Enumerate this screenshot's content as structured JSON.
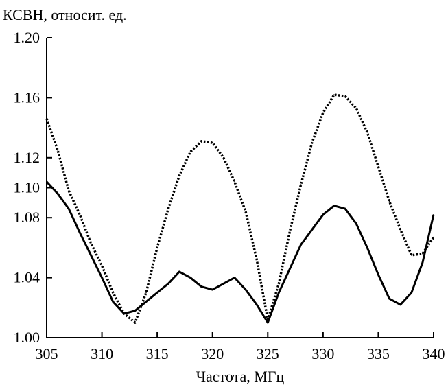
{
  "chart_data": {
    "type": "line",
    "title": "",
    "ylabel": "КСВН, относит. ед.",
    "xlabel": "Частота, МГц",
    "xlim": [
      305,
      340
    ],
    "ylim": [
      1.0,
      1.2
    ],
    "x_ticks": [
      "305",
      "310",
      "315",
      "320",
      "325",
      "330",
      "335",
      "340"
    ],
    "y_ticks": [
      "1.00",
      "1.04",
      "1.08",
      "1.10",
      "1.12",
      "1.16",
      "1.20"
    ],
    "grid": false,
    "legend": "none",
    "series": [
      {
        "style": "dotted",
        "color": "#000000",
        "x": [
          305,
          306,
          307,
          308,
          309,
          310,
          311,
          312,
          313,
          314,
          315,
          316,
          317,
          318,
          319,
          320,
          321,
          322,
          323,
          324,
          325,
          326,
          327,
          328,
          329,
          330,
          331,
          332,
          333,
          334,
          335,
          336,
          337,
          338,
          339,
          340
        ],
        "y": [
          1.146,
          1.125,
          1.098,
          1.082,
          1.063,
          1.048,
          1.03,
          1.016,
          1.01,
          1.03,
          1.06,
          1.086,
          1.108,
          1.124,
          1.131,
          1.13,
          1.12,
          1.104,
          1.084,
          1.052,
          1.012,
          1.036,
          1.071,
          1.102,
          1.13,
          1.15,
          1.162,
          1.161,
          1.153,
          1.137,
          1.114,
          1.091,
          1.072,
          1.055,
          1.056,
          1.067
        ]
      },
      {
        "style": "solid",
        "color": "#000000",
        "x": [
          305,
          306,
          307,
          308,
          309,
          310,
          311,
          312,
          313,
          314,
          315,
          316,
          317,
          318,
          319,
          320,
          321,
          322,
          323,
          324,
          325,
          326,
          327,
          328,
          329,
          330,
          331,
          332,
          333,
          334,
          335,
          336,
          337,
          338,
          339,
          340
        ],
        "y": [
          1.104,
          1.096,
          1.086,
          1.07,
          1.055,
          1.04,
          1.024,
          1.016,
          1.018,
          1.024,
          1.03,
          1.036,
          1.044,
          1.04,
          1.034,
          1.032,
          1.036,
          1.04,
          1.032,
          1.022,
          1.01,
          1.03,
          1.046,
          1.062,
          1.072,
          1.082,
          1.088,
          1.086,
          1.076,
          1.06,
          1.042,
          1.026,
          1.022,
          1.03,
          1.05,
          1.082
        ]
      }
    ]
  }
}
